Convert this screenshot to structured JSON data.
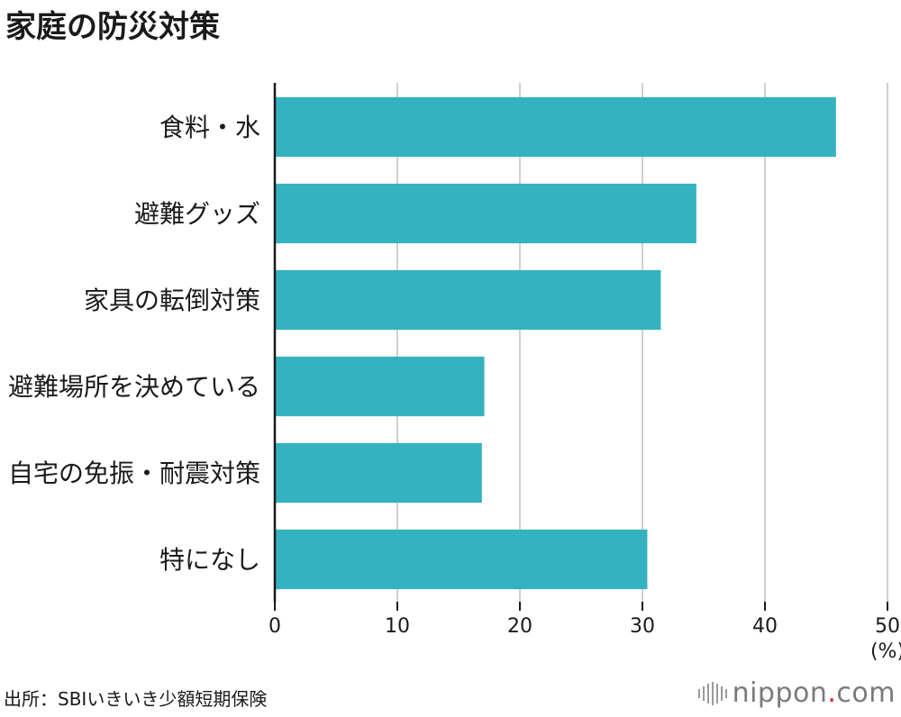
{
  "chart_data": {
    "type": "bar",
    "orientation": "horizontal",
    "title": "家庭の防災対策",
    "categories": [
      "食料・水",
      "避難グッズ",
      "家具の転倒対策",
      "避難場所を決めている",
      "自宅の免振・耐震対策",
      "特になし"
    ],
    "values": [
      45.8,
      34.4,
      31.5,
      17.1,
      16.9,
      30.4
    ],
    "xlim": [
      0,
      50
    ],
    "xticks": [
      "0",
      "10",
      "20",
      "30",
      "40",
      "50"
    ],
    "unit_label": "(%)",
    "grid": true,
    "bar_color": "#34b2c0"
  },
  "source": "出所：SBIいきいき少額短期保険",
  "brand": {
    "name": "nippon",
    "dot": ".",
    "suffix": "com",
    "accent": "#d7262f"
  }
}
